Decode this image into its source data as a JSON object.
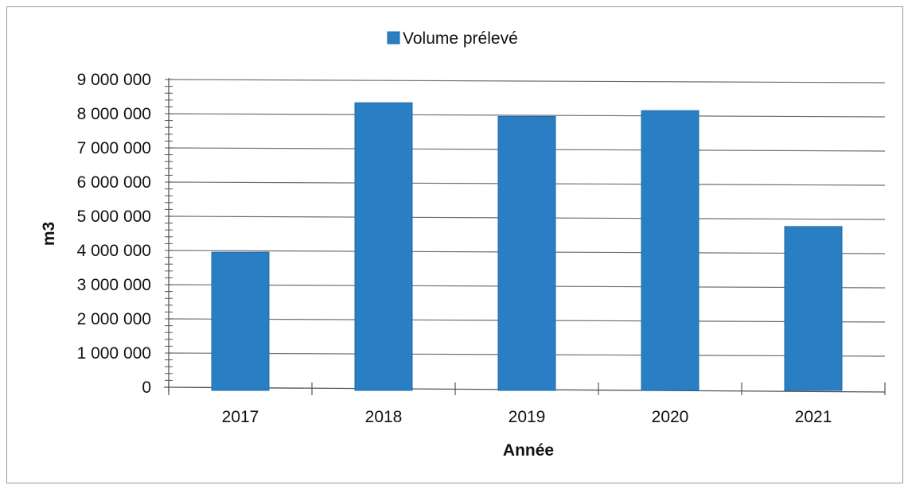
{
  "chart_data": {
    "type": "bar",
    "categories": [
      "2017",
      "2018",
      "2019",
      "2020",
      "2021"
    ],
    "series": [
      {
        "name": "Volume prélevé",
        "values": [
          3950000,
          8320000,
          7920000,
          8090000,
          4700000
        ]
      }
    ],
    "xlabel": "Année",
    "ylabel": "m3",
    "ylim": [
      0,
      9000000
    ],
    "yticks": [
      0,
      1000000,
      2000000,
      3000000,
      4000000,
      5000000,
      6000000,
      7000000,
      8000000,
      9000000
    ],
    "ytick_labels": [
      "0",
      "1 000 000",
      "2 000 000",
      "3 000 000",
      "4 000 000",
      "5 000 000",
      "6 000 000",
      "7 000 000",
      "8 000 000",
      "9 000 000"
    ],
    "grid": true,
    "legend_position": "top",
    "colors": {
      "bar": "#2a7fc4",
      "bar_edge": "#1f6aa8",
      "grid": "#6e6e6e",
      "axis": "#555555"
    }
  }
}
